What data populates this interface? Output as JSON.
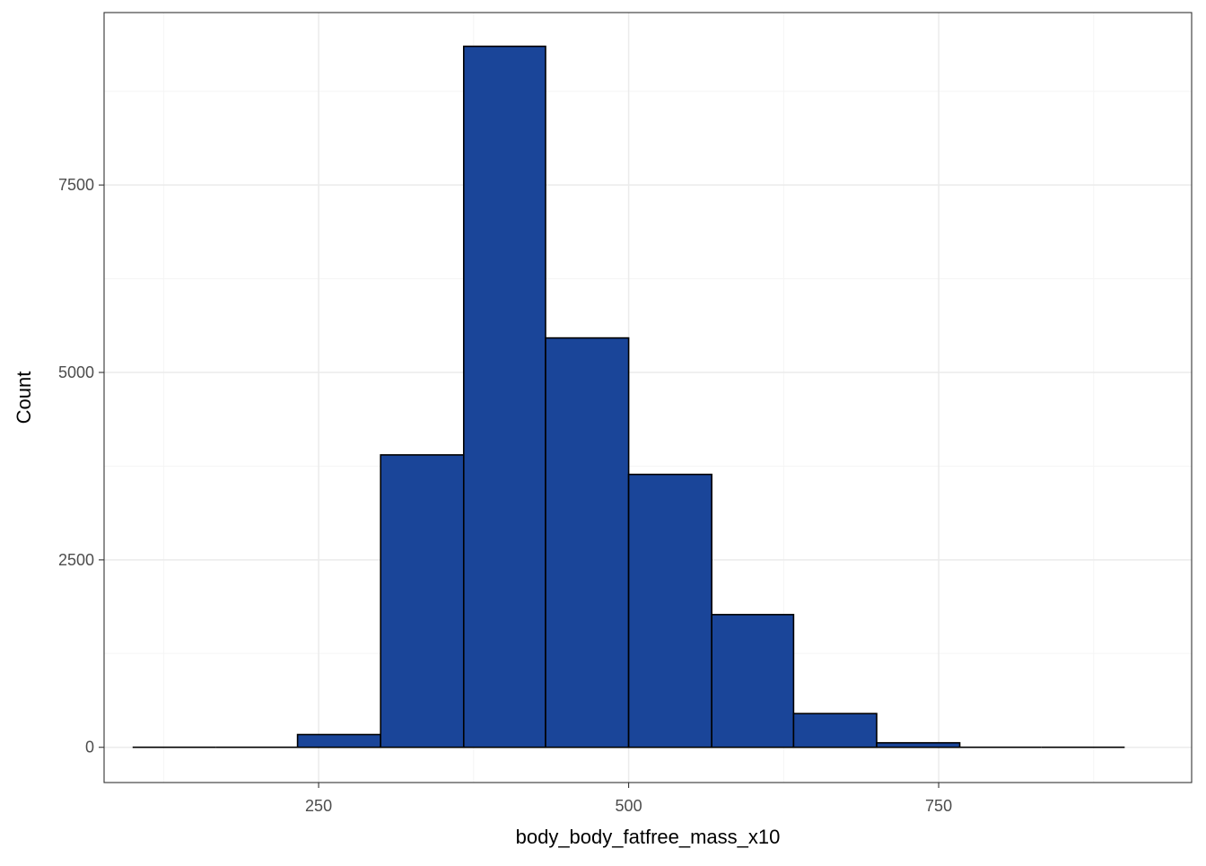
{
  "chart_data": {
    "type": "bar",
    "subtype": "histogram",
    "title": "",
    "xlabel": "body_body_fatfree_mass_x10",
    "ylabel": "Count",
    "xlim": [
      77,
      954
    ],
    "ylim": [
      -470,
      9800
    ],
    "x_ticks": [
      250,
      500,
      750
    ],
    "y_ticks": [
      0,
      2500,
      5000,
      7500
    ],
    "x_tick_labels": [
      "250",
      "500",
      "750"
    ],
    "y_tick_labels": [
      "0",
      "2500",
      "5000",
      "7500"
    ],
    "bins": [
      {
        "x0": 100,
        "x1": 167,
        "count": 0
      },
      {
        "x0": 167,
        "x1": 233,
        "count": 0
      },
      {
        "x0": 233,
        "x1": 300,
        "count": 170
      },
      {
        "x0": 300,
        "x1": 367,
        "count": 3900
      },
      {
        "x0": 367,
        "x1": 433,
        "count": 9350
      },
      {
        "x0": 433,
        "x1": 500,
        "count": 5460
      },
      {
        "x0": 500,
        "x1": 567,
        "count": 3640
      },
      {
        "x0": 567,
        "x1": 633,
        "count": 1770
      },
      {
        "x0": 633,
        "x1": 700,
        "count": 450
      },
      {
        "x0": 700,
        "x1": 767,
        "count": 60
      },
      {
        "x0": 767,
        "x1": 833,
        "count": 0
      },
      {
        "x0": 833,
        "x1": 900,
        "count": 0
      }
    ],
    "grid": true,
    "legend": "none",
    "colors": {
      "bar_fill": "#1a4599",
      "bar_stroke": "#000000",
      "grid_major": "#ebebeb",
      "grid_minor": "#f5f5f5",
      "panel_border": "#333333",
      "tick_label": "#4d4d4d",
      "axis_title": "#000000"
    }
  }
}
